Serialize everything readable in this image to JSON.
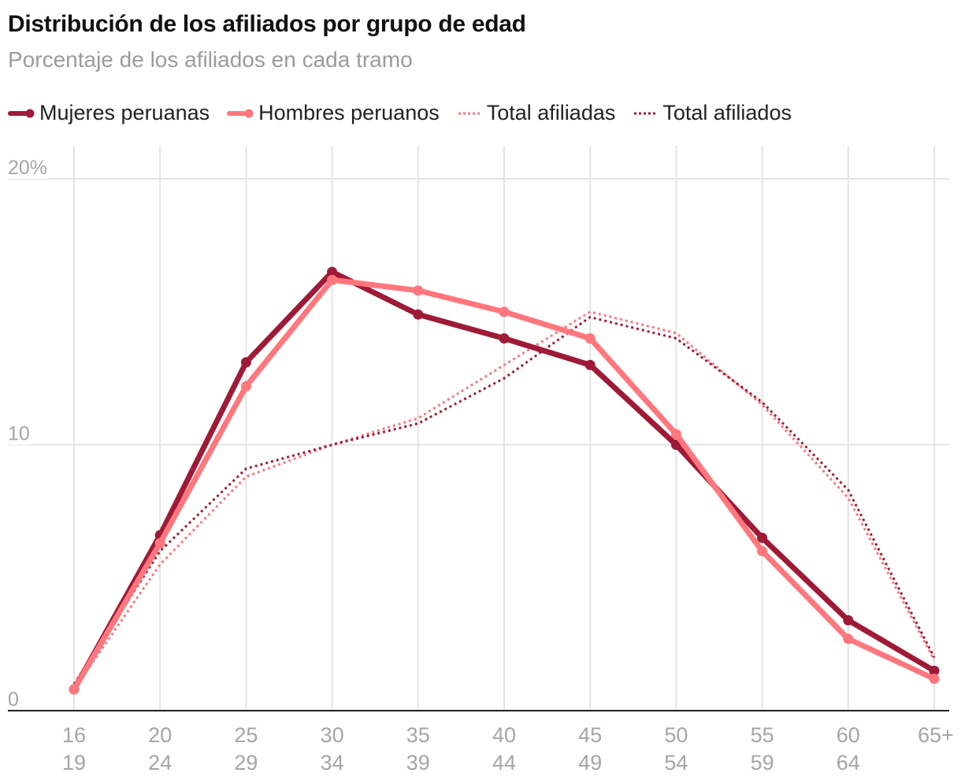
{
  "header": {
    "title": "Distribución de los afiliados por grupo de edad",
    "subtitle": "Porcentaje de los afiliados en cada tramo"
  },
  "legend": [
    {
      "label": "Mujeres peruanas",
      "style": "solid-dot",
      "color": "#9e1a36"
    },
    {
      "label": "Hombres peruanos",
      "style": "solid-dot",
      "color": "#ff767c"
    },
    {
      "label": "Total afiliadas",
      "style": "dotted",
      "color": "#ff767c"
    },
    {
      "label": "Total afiliados",
      "style": "dotted",
      "color": "#9e1a36"
    }
  ],
  "chart_data": {
    "type": "line",
    "title": "Distribución de los afiliados por grupo de edad",
    "subtitle": "Porcentaje de los afiliados en cada tramo",
    "xlabel": "",
    "ylabel": "",
    "ylim": [
      0,
      20
    ],
    "yticks": [
      {
        "value": 0,
        "label": "0"
      },
      {
        "value": 10,
        "label": "10"
      },
      {
        "value": 20,
        "label": "20%"
      }
    ],
    "categories": [
      {
        "top": "16",
        "bottom": "19"
      },
      {
        "top": "20",
        "bottom": "24"
      },
      {
        "top": "25",
        "bottom": "29"
      },
      {
        "top": "30",
        "bottom": "34"
      },
      {
        "top": "35",
        "bottom": "39"
      },
      {
        "top": "40",
        "bottom": "44"
      },
      {
        "top": "45",
        "bottom": "49"
      },
      {
        "top": "50",
        "bottom": "54"
      },
      {
        "top": "55",
        "bottom": "59"
      },
      {
        "top": "60",
        "bottom": "64"
      },
      {
        "top": "65+",
        "bottom": ""
      }
    ],
    "series": [
      {
        "name": "Total afiliadas",
        "style": "dotted",
        "color": "#ff767c",
        "values": [
          0.8,
          5.5,
          8.8,
          10.0,
          11.0,
          13.0,
          15.0,
          14.2,
          11.5,
          8.0,
          1.9
        ]
      },
      {
        "name": "Total afiliados",
        "style": "dotted",
        "color": "#9e1a36",
        "values": [
          1.0,
          6.0,
          9.1,
          10.0,
          10.8,
          12.5,
          14.8,
          14.0,
          11.6,
          8.3,
          2.0
        ]
      },
      {
        "name": "Mujeres peruanas",
        "style": "solid",
        "color": "#9e1a36",
        "values": [
          0.8,
          6.6,
          13.1,
          16.5,
          14.9,
          14.0,
          13.0,
          10.0,
          6.5,
          3.4,
          1.5
        ]
      },
      {
        "name": "Hombres peruanos",
        "style": "solid",
        "color": "#ff767c",
        "values": [
          0.8,
          6.3,
          12.2,
          16.2,
          15.8,
          15.0,
          14.0,
          10.4,
          6.0,
          2.7,
          1.2
        ]
      }
    ],
    "grid": true,
    "legend_position": "top-left"
  }
}
